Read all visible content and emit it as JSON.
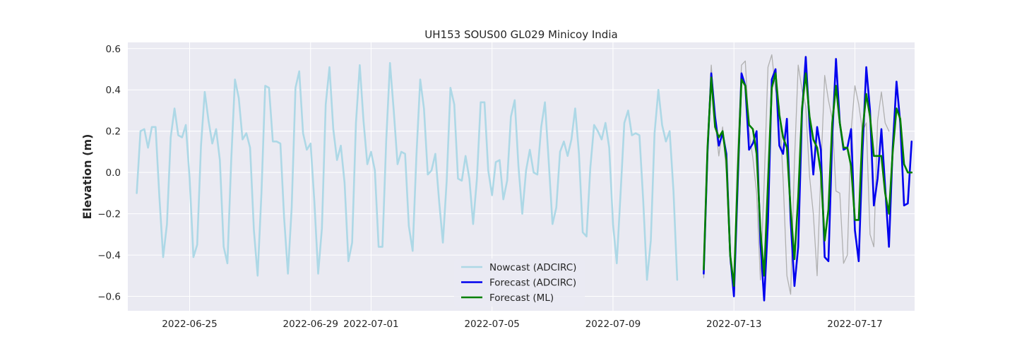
{
  "chart_data": {
    "type": "line",
    "title": "UH153 SOUS00 GL029 Minicoy India",
    "xlabel": "",
    "ylabel": "Elevation (m)",
    "x_is_date": true,
    "xlim": [
      "2022-06-22T00:00",
      "2022-07-20T00:00"
    ],
    "ylim": [
      -0.67,
      0.63
    ],
    "xticks": [
      {
        "date": "2022-06-25",
        "label": "2022-06-25"
      },
      {
        "date": "2022-06-29",
        "label": "2022-06-29"
      },
      {
        "date": "2022-07-01",
        "label": "2022-07-01"
      },
      {
        "date": "2022-07-05",
        "label": "2022-07-05"
      },
      {
        "date": "2022-07-09",
        "label": "2022-07-09"
      },
      {
        "date": "2022-07-13",
        "label": "2022-07-13"
      },
      {
        "date": "2022-07-17",
        "label": "2022-07-17"
      }
    ],
    "yticks": [
      -0.6,
      -0.4,
      -0.2,
      0.0,
      0.2,
      0.4,
      0.6
    ],
    "ytick_labels": [
      "−0.6",
      "−0.4",
      "−0.2",
      "0.0",
      "0.2",
      "0.4",
      "0.6"
    ],
    "grid": true,
    "background": "#eaeaf2",
    "legend_position": "lower-center",
    "series": [
      {
        "name": "",
        "color": "#b0b0b0",
        "width": 1.3,
        "in_legend": false,
        "x_start": "2022-07-12T00:00",
        "step_hours": 3,
        "values": [
          -0.51,
          0.15,
          0.52,
          0.25,
          0.08,
          0.22,
          -0.01,
          -0.44,
          -0.52,
          0.1,
          0.52,
          0.54,
          0.2,
          0.07,
          -0.1,
          -0.52,
          -0.05,
          0.51,
          0.57,
          0.4,
          0.32,
          -0.03,
          -0.5,
          -0.59,
          0.05,
          0.52,
          0.4,
          0.32,
          -0.02,
          -0.2,
          -0.5,
          0.01,
          0.47,
          0.35,
          0.26,
          -0.09,
          -0.1,
          -0.44,
          -0.4,
          0.2,
          0.42,
          0.33,
          0.2,
          0.24,
          -0.3,
          -0.36,
          0.25,
          0.39,
          0.24,
          0.2
        ]
      },
      {
        "name": "Nowcast (ADCIRC)",
        "color": "#add8e6",
        "width": 2.6,
        "in_legend": true,
        "x_start": "2022-06-23T06:00",
        "step_hours": 3,
        "values": [
          -0.1,
          0.2,
          0.21,
          0.12,
          0.22,
          0.22,
          -0.12,
          -0.41,
          -0.25,
          0.17,
          0.31,
          0.18,
          0.17,
          0.23,
          -0.03,
          -0.41,
          -0.35,
          0.13,
          0.39,
          0.25,
          0.14,
          0.21,
          0.06,
          -0.36,
          -0.44,
          0.06,
          0.45,
          0.36,
          0.16,
          0.19,
          0.12,
          -0.28,
          -0.5,
          -0.1,
          0.42,
          0.41,
          0.15,
          0.15,
          0.14,
          -0.22,
          -0.49,
          -0.17,
          0.41,
          0.49,
          0.19,
          0.11,
          0.14,
          -0.14,
          -0.49,
          -0.27,
          0.33,
          0.51,
          0.21,
          0.06,
          0.13,
          -0.05,
          -0.43,
          -0.34,
          0.24,
          0.52,
          0.25,
          0.04,
          0.1,
          0.01,
          -0.36,
          -0.36,
          0.15,
          0.53,
          0.3,
          0.04,
          0.1,
          0.09,
          -0.26,
          -0.38,
          0.08,
          0.45,
          0.31,
          -0.01,
          0.01,
          0.09,
          -0.14,
          -0.34,
          -0.04,
          0.41,
          0.33,
          -0.03,
          -0.04,
          0.08,
          -0.03,
          -0.25,
          -0.03,
          0.34,
          0.34,
          0.01,
          -0.11,
          0.05,
          0.06,
          -0.13,
          -0.04,
          0.27,
          0.35,
          0.03,
          -0.2,
          0.01,
          0.11,
          0.0,
          -0.01,
          0.22,
          0.34,
          0.05,
          -0.25,
          -0.17,
          0.1,
          0.15,
          0.08,
          0.16,
          0.31,
          0.09,
          -0.29,
          -0.31,
          0.02,
          0.23,
          0.2,
          0.16,
          0.24,
          0.12,
          -0.25,
          -0.44,
          -0.1,
          0.24,
          0.3,
          0.18,
          0.19,
          0.18,
          -0.14,
          -0.52,
          -0.33,
          0.19,
          0.4,
          0.23,
          0.15,
          0.2,
          -0.09,
          -0.52
        ]
      },
      {
        "name": "Forecast (ADCIRC)",
        "color": "#0000ee",
        "width": 2.6,
        "in_legend": true,
        "x_start": "2022-07-12T00:00",
        "step_hours": 3,
        "values": [
          -0.49,
          0.1,
          0.48,
          0.27,
          0.13,
          0.19,
          0.09,
          -0.4,
          -0.6,
          -0.05,
          0.48,
          0.42,
          0.11,
          0.14,
          0.2,
          -0.34,
          -0.62,
          -0.24,
          0.45,
          0.5,
          0.13,
          0.09,
          0.26,
          -0.23,
          -0.55,
          -0.36,
          0.29,
          0.56,
          0.23,
          -0.01,
          0.22,
          0.11,
          -0.41,
          -0.43,
          0.17,
          0.55,
          0.24,
          0.11,
          0.12,
          0.21,
          -0.28,
          -0.43,
          0.1,
          0.51,
          0.3,
          -0.16,
          -0.03,
          0.21,
          -0.07,
          -0.36,
          0.12,
          0.44,
          0.24,
          -0.16,
          -0.15,
          0.15
        ]
      },
      {
        "name": "Forecast (ML)",
        "color": "#008000",
        "width": 2.6,
        "in_legend": true,
        "x_start": "2022-07-12T00:00",
        "step_hours": 3,
        "values": [
          -0.47,
          0.12,
          0.46,
          0.22,
          0.17,
          0.2,
          0.06,
          -0.4,
          -0.55,
          0.0,
          0.45,
          0.42,
          0.23,
          0.21,
          0.09,
          -0.28,
          -0.5,
          -0.05,
          0.41,
          0.48,
          0.28,
          0.17,
          0.12,
          -0.18,
          -0.42,
          -0.12,
          0.31,
          0.48,
          0.27,
          0.16,
          0.12,
          0.0,
          -0.33,
          -0.18,
          0.24,
          0.42,
          0.24,
          0.12,
          0.12,
          0.03,
          -0.23,
          -0.23,
          0.2,
          0.38,
          0.27,
          0.08,
          0.08,
          0.08,
          -0.1,
          -0.2,
          0.1,
          0.31,
          0.26,
          0.04,
          0.0,
          0.0
        ]
      }
    ]
  }
}
